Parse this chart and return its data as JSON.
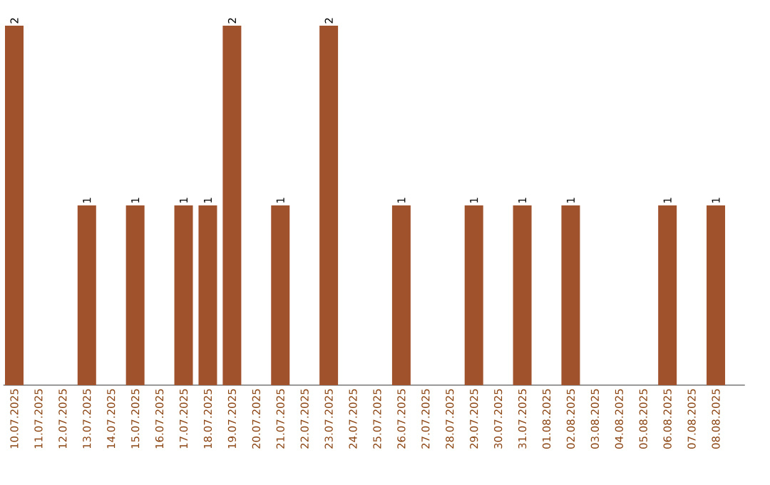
{
  "chart_data": {
    "type": "bar",
    "categories": [
      "10.07.2025",
      "11.07.2025",
      "12.07.2025",
      "13.07.2025",
      "14.07.2025",
      "15.07.2025",
      "16.07.2025",
      "17.07.2025",
      "18.07.2025",
      "19.07.2025",
      "20.07.2025",
      "21.07.2025",
      "22.07.2025",
      "23.07.2025",
      "24.07.2025",
      "25.07.2025",
      "26.07.2025",
      "27.07.2025",
      "28.07.2025",
      "29.07.2025",
      "30.07.2025",
      "31.07.2025",
      "01.08.2025",
      "02.08.2025",
      "03.08.2025",
      "04.08.2025",
      "05.08.2025",
      "06.08.2025",
      "07.08.2025",
      "08.08.2025"
    ],
    "values": [
      2,
      0,
      0,
      1,
      0,
      1,
      0,
      1,
      1,
      2,
      0,
      1,
      0,
      2,
      0,
      0,
      1,
      0,
      0,
      1,
      0,
      1,
      0,
      1,
      0,
      0,
      0,
      1,
      0,
      1
    ],
    "value_labels": [
      "2",
      null,
      null,
      "1",
      null,
      "1",
      null,
      "1",
      "1",
      "2",
      null,
      "1",
      null,
      "2",
      null,
      null,
      "1",
      null,
      null,
      "1",
      null,
      "1",
      null,
      "1",
      null,
      null,
      null,
      "1",
      null,
      "1"
    ],
    "color": "#a0522d",
    "tick_labels": "x"
  }
}
